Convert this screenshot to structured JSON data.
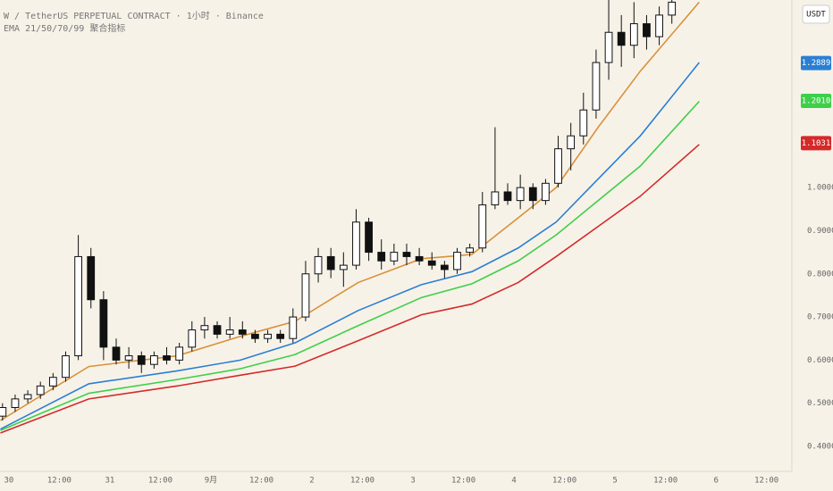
{
  "chart_data": {
    "type": "candlestick",
    "title": "W / TetherUS PERPETUAL CONTRACT · 1小时 · Binance",
    "subtitle": "EMA 21/50/70/99 聚合指标",
    "currency": "USDT",
    "up_color": "#ffffff",
    "down_color": "#111111",
    "x": [
      -1.5,
      1.5,
      4.5,
      7.5,
      10.5,
      13.5,
      16.5,
      19.5,
      22.5,
      25.5,
      28.5,
      31.5,
      34.5,
      37.5,
      40.5,
      43.5,
      46.5,
      49.5,
      52.5,
      55.5,
      58.5,
      61.5,
      64.5,
      67.5,
      70.5,
      73.5,
      76.5,
      79.5,
      82.5,
      85.5,
      88.5,
      91.5,
      94.5,
      97.5,
      100.5,
      103.5,
      106.5,
      109.5,
      112.5,
      115.5,
      118.5,
      121.5,
      124.5,
      127.5,
      130.5,
      133.5,
      136.5,
      139.5,
      142.5,
      145.5,
      148.5,
      151.5,
      154.5,
      157.5
    ],
    "open": [
      0.47,
      0.49,
      0.51,
      0.52,
      0.54,
      0.56,
      0.61,
      0.84,
      0.74,
      0.63,
      0.6,
      0.61,
      0.59,
      0.61,
      0.6,
      0.63,
      0.67,
      0.68,
      0.66,
      0.67,
      0.66,
      0.65,
      0.66,
      0.65,
      0.7,
      0.8,
      0.84,
      0.81,
      0.82,
      0.92,
      0.85,
      0.83,
      0.85,
      0.84,
      0.83,
      0.82,
      0.81,
      0.85,
      0.86,
      0.96,
      0.99,
      0.97,
      1.0,
      0.97,
      1.01,
      1.09,
      1.12,
      1.18,
      1.29,
      1.36,
      1.33,
      1.38,
      1.35,
      1.4
    ],
    "high": [
      0.5,
      0.52,
      0.53,
      0.55,
      0.57,
      0.62,
      0.89,
      0.86,
      0.76,
      0.65,
      0.63,
      0.62,
      0.62,
      0.63,
      0.64,
      0.69,
      0.7,
      0.69,
      0.7,
      0.69,
      0.67,
      0.67,
      0.67,
      0.72,
      0.83,
      0.86,
      0.86,
      0.85,
      0.95,
      0.93,
      0.88,
      0.87,
      0.87,
      0.86,
      0.85,
      0.83,
      0.86,
      0.87,
      0.99,
      1.14,
      1.01,
      1.03,
      1.01,
      1.02,
      1.12,
      1.15,
      1.22,
      1.32,
      1.44,
      1.4,
      1.43,
      1.4,
      1.42,
      1.44
    ],
    "low": [
      0.46,
      0.48,
      0.5,
      0.51,
      0.53,
      0.55,
      0.6,
      0.72,
      0.6,
      0.59,
      0.58,
      0.57,
      0.58,
      0.59,
      0.59,
      0.62,
      0.65,
      0.65,
      0.65,
      0.65,
      0.64,
      0.64,
      0.64,
      0.64,
      0.69,
      0.78,
      0.79,
      0.77,
      0.81,
      0.83,
      0.81,
      0.82,
      0.82,
      0.82,
      0.81,
      0.79,
      0.8,
      0.84,
      0.85,
      0.95,
      0.96,
      0.95,
      0.95,
      0.96,
      1.0,
      1.04,
      1.1,
      1.16,
      1.25,
      1.28,
      1.3,
      1.32,
      1.33,
      1.38
    ],
    "close": [
      0.49,
      0.51,
      0.52,
      0.54,
      0.56,
      0.61,
      0.84,
      0.74,
      0.63,
      0.6,
      0.61,
      0.59,
      0.61,
      0.6,
      0.63,
      0.67,
      0.68,
      0.66,
      0.67,
      0.66,
      0.65,
      0.66,
      0.65,
      0.7,
      0.8,
      0.84,
      0.81,
      0.82,
      0.92,
      0.85,
      0.83,
      0.85,
      0.84,
      0.83,
      0.82,
      0.81,
      0.85,
      0.86,
      0.96,
      0.99,
      0.97,
      1.0,
      0.97,
      1.01,
      1.09,
      1.12,
      1.18,
      1.29,
      1.36,
      1.33,
      1.38,
      1.35,
      1.4,
      1.43
    ],
    "series": [
      {
        "type": "line",
        "color": "#d8913a",
        "x": [
          -2,
          19,
          40,
          55,
          68,
          83,
          98,
          110,
          121,
          130,
          140,
          150,
          164
        ],
        "values": [
          0.46,
          0.585,
          0.61,
          0.655,
          0.69,
          0.78,
          0.835,
          0.845,
          0.93,
          1.0,
          1.14,
          1.27,
          1.43
        ]
      },
      {
        "type": "line",
        "color": "#2a7fd4",
        "x": [
          -2,
          19,
          40,
          55,
          68,
          83,
          98,
          110,
          121,
          130,
          140,
          150,
          164
        ],
        "values": [
          0.44,
          0.545,
          0.575,
          0.6,
          0.64,
          0.715,
          0.775,
          0.805,
          0.86,
          0.92,
          1.02,
          1.12,
          1.29
        ]
      },
      {
        "type": "line",
        "color": "#3ecf4a",
        "x": [
          -2,
          19,
          40,
          55,
          68,
          83,
          98,
          110,
          121,
          130,
          140,
          150,
          164
        ],
        "values": [
          0.437,
          0.523,
          0.555,
          0.58,
          0.613,
          0.68,
          0.745,
          0.777,
          0.83,
          0.89,
          0.97,
          1.05,
          1.2
        ]
      },
      {
        "type": "line",
        "color": "#d42a2a",
        "x": [
          -2,
          19,
          40,
          55,
          68,
          83,
          98,
          110,
          121,
          130,
          140,
          150,
          164
        ],
        "values": [
          0.431,
          0.51,
          0.54,
          0.565,
          0.586,
          0.645,
          0.705,
          0.73,
          0.78,
          0.84,
          0.91,
          0.98,
          1.1
        ]
      }
    ],
    "price_labels": [
      {
        "value": 1.2889,
        "label": "1.2889",
        "color": "#2a7fd4"
      },
      {
        "value": 1.201,
        "label": "1.2010",
        "color": "#3ecf4a"
      },
      {
        "value": 1.1031,
        "label": "1.1031",
        "color": "#d42a2a"
      }
    ],
    "xlim": [
      -2.1,
      185.8
    ],
    "xticks": [
      {
        "value": 0,
        "label": "30"
      },
      {
        "value": 12,
        "label": "12:00"
      },
      {
        "value": 24,
        "label": "31"
      },
      {
        "value": 36,
        "label": "12:00"
      },
      {
        "value": 48,
        "label": "9月"
      },
      {
        "value": 60,
        "label": "12:00"
      },
      {
        "value": 72,
        "label": "2"
      },
      {
        "value": 84,
        "label": "12:00"
      },
      {
        "value": 96,
        "label": "3"
      },
      {
        "value": 108,
        "label": "12:00"
      },
      {
        "value": 120,
        "label": "4"
      },
      {
        "value": 132,
        "label": "12:00"
      },
      {
        "value": 144,
        "label": "5"
      },
      {
        "value": 156,
        "label": "12:00"
      },
      {
        "value": 168,
        "label": "6"
      },
      {
        "value": 180,
        "label": "12:00"
      }
    ],
    "ylim": [
      0.342,
      1.435
    ],
    "yticks": [
      {
        "value": 0.4,
        "label": "0.4000"
      },
      {
        "value": 0.5,
        "label": "0.5000"
      },
      {
        "value": 0.6,
        "label": "0.6000"
      },
      {
        "value": 0.7,
        "label": "0.7000"
      },
      {
        "value": 0.8,
        "label": "0.8000"
      },
      {
        "value": 0.9,
        "label": "0.9000"
      },
      {
        "value": 1.0,
        "label": "1.0000"
      }
    ],
    "grid": false
  }
}
